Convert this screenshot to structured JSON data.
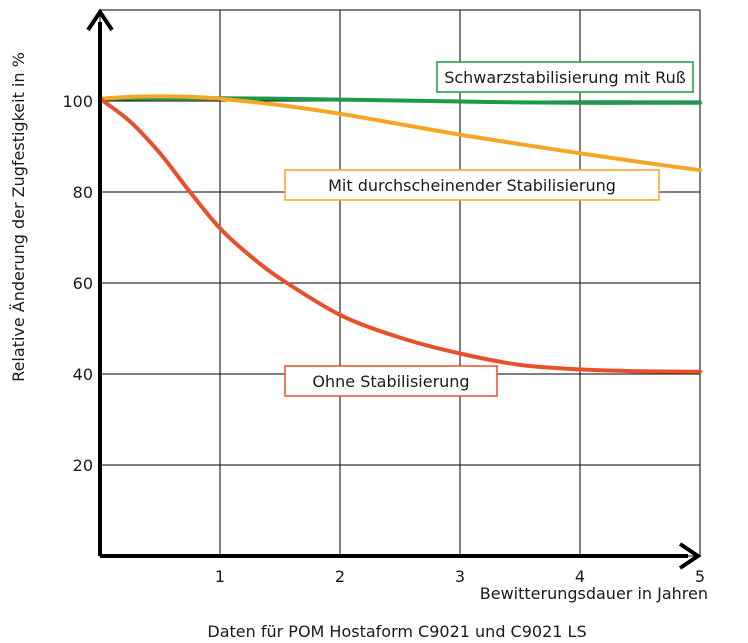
{
  "chart_data": {
    "type": "line",
    "xlabel": "Bewitterungsdauer in Jahren",
    "ylabel": "Relative Änderung der Zugfestigkeit in %",
    "caption": "Daten für POM Hostaform C9021 und C9021 LS",
    "xlim": [
      0,
      5
    ],
    "ylim": [
      0,
      120
    ],
    "x_ticks": [
      1,
      2,
      3,
      4,
      5
    ],
    "y_ticks": [
      20,
      40,
      60,
      80,
      100
    ],
    "grid": true,
    "series": [
      {
        "name": "Schwarzstabilisierung mit Ruß",
        "color": "#1a9a4a",
        "x": [
          0,
          0.5,
          1,
          1.5,
          2,
          2.5,
          3,
          3.5,
          4,
          4.5,
          5
        ],
        "y": [
          100.5,
          100.6,
          100.6,
          100.5,
          100.3,
          100.1,
          99.9,
          99.7,
          99.6,
          99.6,
          99.6
        ]
      },
      {
        "name": "Mit durchscheinender Stabilisierung",
        "color": "#f5a623",
        "x": [
          0,
          0.25,
          0.5,
          0.75,
          1,
          1.5,
          2,
          2.5,
          3,
          3.5,
          4,
          4.5,
          5
        ],
        "y": [
          100.5,
          100.9,
          101,
          100.9,
          100.5,
          99.1,
          97.2,
          94.9,
          92.6,
          90.5,
          88.5,
          86.6,
          84.8
        ]
      },
      {
        "name": "Ohne Stabilisierung",
        "color": "#e8502a",
        "x": [
          0,
          0.25,
          0.5,
          0.75,
          1,
          1.25,
          1.5,
          2,
          2.5,
          3,
          3.5,
          4,
          4.5,
          5
        ],
        "y": [
          100.5,
          95.5,
          88.5,
          80,
          72,
          66,
          61,
          53,
          48,
          44.5,
          42,
          41,
          40.6,
          40.5
        ]
      }
    ]
  }
}
